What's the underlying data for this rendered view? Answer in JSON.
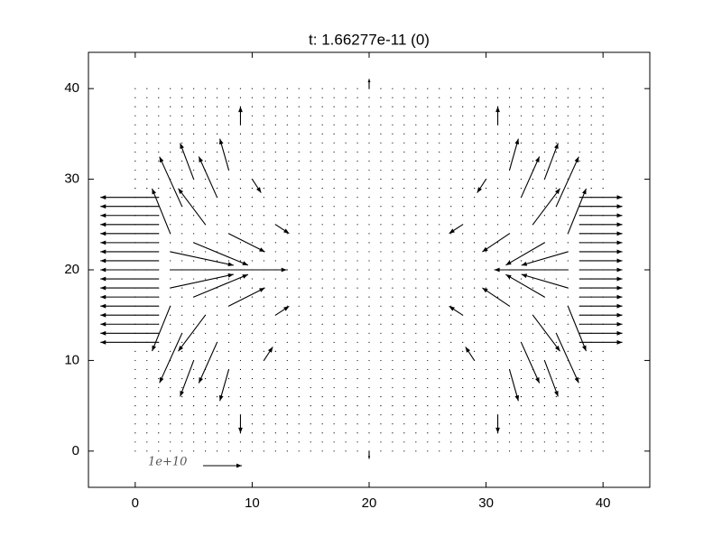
{
  "chart_data": {
    "type": "quiver",
    "title": "t: 1.66277e-11  (0)",
    "xlim": [
      -4,
      44
    ],
    "ylim": [
      -4,
      44
    ],
    "xticks": [
      0,
      10,
      20,
      30,
      40
    ],
    "yticks": [
      0,
      10,
      20,
      30,
      40
    ],
    "color": "#000000",
    "grid_x": [
      0,
      1,
      2,
      3,
      4,
      5,
      6,
      7,
      8,
      9,
      10,
      11,
      12,
      13,
      14,
      15,
      16,
      17,
      18,
      19,
      20,
      21,
      22,
      23,
      24,
      25,
      26,
      27,
      28,
      29,
      30,
      31,
      32,
      33,
      34,
      35,
      36,
      37,
      38,
      39,
      40
    ],
    "grid_y": [
      0,
      1,
      2,
      3,
      4,
      5,
      6,
      7,
      8,
      9,
      10,
      11,
      12,
      13,
      14,
      15,
      16,
      17,
      18,
      19,
      20,
      21,
      22,
      23,
      24,
      25,
      26,
      27,
      28,
      29,
      30,
      31,
      32,
      33,
      34,
      35,
      36,
      37,
      38,
      39,
      40
    ],
    "arrows": {
      "x": [
        2,
        2,
        2,
        2,
        2,
        2,
        2,
        2,
        2,
        2,
        2,
        2,
        2,
        2,
        2,
        2,
        2,
        38,
        38,
        38,
        38,
        38,
        38,
        38,
        38,
        38,
        38,
        38,
        38,
        38,
        38,
        38,
        38,
        38,
        3,
        37,
        3,
        4,
        5,
        6,
        7,
        8,
        3,
        5,
        8,
        3,
        4,
        5,
        6,
        7,
        8,
        3,
        5,
        8,
        37,
        36,
        35,
        34,
        33,
        32,
        37,
        35,
        32,
        37,
        36,
        35,
        34,
        33,
        32,
        37,
        35,
        32,
        10,
        11,
        12,
        12,
        30,
        29,
        28,
        28,
        9,
        31,
        9,
        31,
        20,
        20
      ],
      "y": [
        12,
        13,
        14,
        15,
        16,
        17,
        18,
        19,
        20,
        21,
        22,
        23,
        24,
        25,
        26,
        27,
        28,
        12,
        13,
        14,
        15,
        16,
        17,
        18,
        19,
        20,
        21,
        22,
        23,
        24,
        25,
        26,
        27,
        28,
        20,
        20,
        24,
        27,
        30,
        25,
        28,
        31,
        22,
        23,
        24,
        16,
        13,
        10,
        15,
        12,
        9,
        18,
        17,
        16,
        24,
        27,
        30,
        25,
        28,
        31,
        22,
        23,
        24,
        16,
        13,
        10,
        15,
        12,
        9,
        18,
        17,
        16,
        30,
        10,
        25,
        15,
        30,
        10,
        25,
        15,
        36,
        36,
        4,
        4,
        40,
        0
      ],
      "u": [
        -15000000000.0,
        -15000000000.0,
        -15000000000.0,
        -15000000000.0,
        -15000000000.0,
        -15000000000.0,
        -15000000000.0,
        -15000000000.0,
        -15000000000.0,
        -15000000000.0,
        -15000000000.0,
        -15000000000.0,
        -15000000000.0,
        -15000000000.0,
        -15000000000.0,
        -15000000000.0,
        -15000000000.0,
        11000000000.0,
        11000000000.0,
        11000000000.0,
        11000000000.0,
        11000000000.0,
        11000000000.0,
        11000000000.0,
        11000000000.0,
        11000000000.0,
        11000000000.0,
        11000000000.0,
        11000000000.0,
        11000000000.0,
        11000000000.0,
        11000000000.0,
        11000000000.0,
        11000000000.0,
        30000000000.0,
        -19000000000.0,
        -4700000000.0,
        -5800000000.0,
        -3500000000.0,
        -7000000000.0,
        -4700000000.0,
        -2300000000.0,
        16300000000.0,
        14000000000.0,
        9300000000.0,
        -4700000000.0,
        -5800000000.0,
        -3500000000.0,
        -7000000000.0,
        -4700000000.0,
        -2300000000.0,
        16300000000.0,
        14000000000.0,
        9300000000.0,
        4700000000.0,
        5800000000.0,
        3500000000.0,
        7000000000.0,
        4700000000.0,
        2300000000.0,
        -12000000000.0,
        -10000000000.0,
        -7000000000.0,
        4700000000.0,
        5800000000.0,
        3500000000.0,
        7000000000.0,
        4700000000.0,
        2300000000.0,
        -12000000000.0,
        -10000000000.0,
        -7000000000.0,
        2300000000.0,
        2300000000.0,
        3500000000.0,
        3500000000.0,
        -2300000000.0,
        -2300000000.0,
        -3500000000.0,
        -3500000000.0,
        0,
        0,
        0,
        0,
        0,
        0
      ],
      "v": [
        0,
        0,
        0,
        0,
        0,
        0,
        0,
        0,
        0,
        0,
        0,
        0,
        0,
        0,
        0,
        0,
        0,
        0,
        0,
        0,
        0,
        0,
        0,
        0,
        0,
        0,
        0,
        0,
        0,
        0,
        0,
        0,
        0,
        0,
        0,
        0,
        11600000000.0,
        12800000000.0,
        9300000000.0,
        9300000000.0,
        10500000000.0,
        8100000000.0,
        -3500000000.0,
        -5800000000.0,
        -4700000000.0,
        -11600000000.0,
        -12800000000.0,
        -9300000000.0,
        -9300000000.0,
        -10500000000.0,
        -8100000000.0,
        3500000000.0,
        5800000000.0,
        4700000000.0,
        11600000000.0,
        12800000000.0,
        9300000000.0,
        9300000000.0,
        10500000000.0,
        8100000000.0,
        -3500000000.0,
        -5800000000.0,
        -4700000000.0,
        -11600000000.0,
        -12800000000.0,
        -9300000000.0,
        -9300000000.0,
        -10500000000.0,
        -8100000000.0,
        3500000000.0,
        5800000000.0,
        4700000000.0,
        -3500000000.0,
        3500000000.0,
        -2300000000.0,
        2300000000.0,
        -3500000000.0,
        3500000000.0,
        -2300000000.0,
        2300000000.0,
        4700000000.0,
        4700000000.0,
        -4700000000.0,
        -4700000000.0,
        2500000000.0,
        -2000000000.0
      ]
    },
    "key": {
      "value": 10000000000.0,
      "label": "1e+10"
    }
  }
}
